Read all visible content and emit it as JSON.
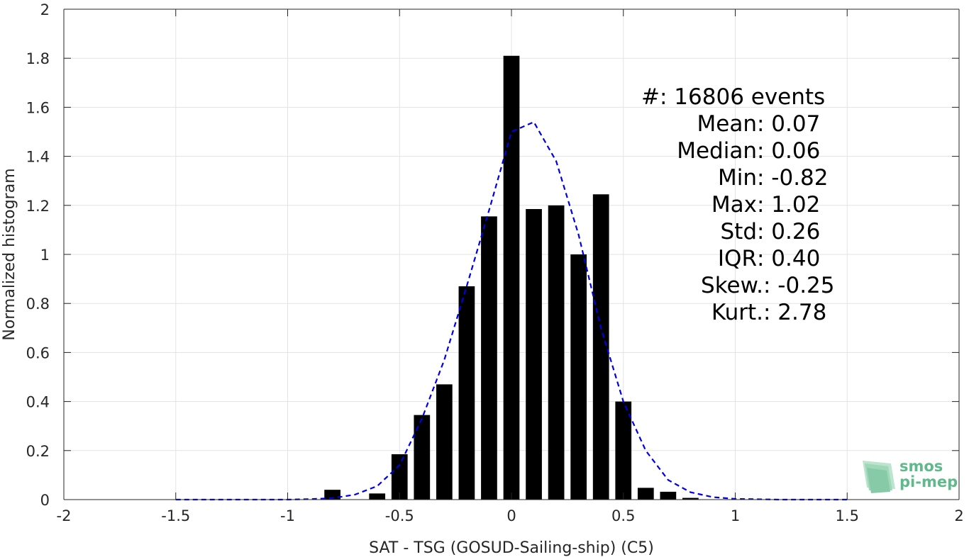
{
  "chart_data": {
    "type": "bar",
    "xlabel": "SAT - TSG (GOSUD-Sailing-ship) (C5)",
    "ylabel": "Normalized histogram",
    "xlim": [
      -2,
      2
    ],
    "ylim": [
      0,
      2
    ],
    "xticks": [
      -2,
      -1.5,
      -1,
      -0.5,
      0,
      0.5,
      1,
      1.5,
      2
    ],
    "xtick_labels": [
      "-2",
      "-1.5",
      "-1",
      "-0.5",
      "0",
      "0.5",
      "1",
      "1.5",
      "2"
    ],
    "yticks": [
      0,
      0.2,
      0.4,
      0.6,
      0.8,
      1,
      1.2,
      1.4,
      1.6,
      1.8,
      2
    ],
    "ytick_labels": [
      "0",
      "0.2",
      "0.4",
      "0.6",
      "0.8",
      "1",
      "1.2",
      "1.4",
      "1.6",
      "1.8",
      "2"
    ],
    "grid": true,
    "bar_color": "#000000",
    "bar_width": 0.072,
    "bars": [
      {
        "x": -0.8,
        "y": 0.04
      },
      {
        "x": -0.6,
        "y": 0.025
      },
      {
        "x": -0.5,
        "y": 0.185
      },
      {
        "x": -0.4,
        "y": 0.345
      },
      {
        "x": -0.3,
        "y": 0.47
      },
      {
        "x": -0.2,
        "y": 0.87
      },
      {
        "x": -0.1,
        "y": 1.155
      },
      {
        "x": 0.0,
        "y": 1.81
      },
      {
        "x": 0.1,
        "y": 1.185
      },
      {
        "x": 0.2,
        "y": 1.2
      },
      {
        "x": 0.3,
        "y": 1.0
      },
      {
        "x": 0.4,
        "y": 1.245
      },
      {
        "x": 0.5,
        "y": 0.4
      },
      {
        "x": 0.6,
        "y": 0.048
      },
      {
        "x": 0.7,
        "y": 0.032
      },
      {
        "x": 0.8,
        "y": 0.007
      }
    ],
    "fit_curve": {
      "color": "#0000e6",
      "style": "dashed",
      "points": [
        [
          -1.5,
          0.0
        ],
        [
          -1.2,
          0.0
        ],
        [
          -1.0,
          0.0
        ],
        [
          -0.9,
          0.002
        ],
        [
          -0.8,
          0.006
        ],
        [
          -0.7,
          0.02
        ],
        [
          -0.6,
          0.055
        ],
        [
          -0.5,
          0.14
        ],
        [
          -0.4,
          0.33
        ],
        [
          -0.3,
          0.57
        ],
        [
          -0.2,
          0.87
        ],
        [
          -0.1,
          1.18
        ],
        [
          0.0,
          1.5
        ],
        [
          0.1,
          1.54
        ],
        [
          0.2,
          1.38
        ],
        [
          0.3,
          1.08
        ],
        [
          0.4,
          0.7
        ],
        [
          0.5,
          0.4
        ],
        [
          0.6,
          0.2
        ],
        [
          0.7,
          0.08
        ],
        [
          0.8,
          0.03
        ],
        [
          0.9,
          0.01
        ],
        [
          1.0,
          0.003
        ],
        [
          1.2,
          0.0
        ],
        [
          1.5,
          0.0
        ]
      ]
    },
    "stats": [
      {
        "label": "#  ",
        "value": ": 16806 events"
      },
      {
        "label": "Mean ",
        "value": ": 0.07"
      },
      {
        "label": "Median ",
        "value": ": 0.06"
      },
      {
        "label": "Min ",
        "value": ": -0.82"
      },
      {
        "label": "Max ",
        "value": ": 1.02"
      },
      {
        "label": "Std ",
        "value": ": 0.26"
      },
      {
        "label": "IQR ",
        "value": ": 0.40"
      },
      {
        "label": "Skew. ",
        "value": ": -0.25"
      },
      {
        "label": "Kurt. ",
        "value": ": 2.78"
      }
    ]
  },
  "logo": {
    "line1": "smos",
    "line2": "pi-mep",
    "color": "#5fb98a"
  }
}
